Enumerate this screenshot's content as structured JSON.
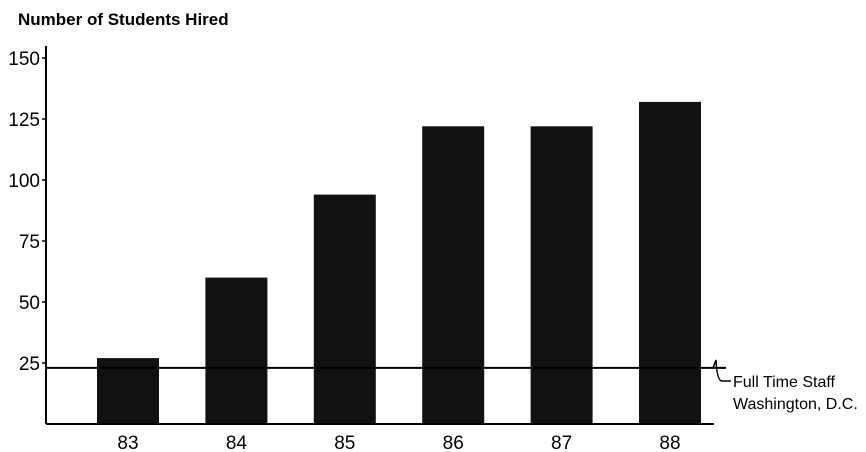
{
  "chart_data": {
    "type": "bar",
    "title": "Number of Students Hired",
    "xlabel": "",
    "ylabel": "",
    "categories": [
      "83",
      "84",
      "85",
      "86",
      "87",
      "88"
    ],
    "values": [
      27,
      60,
      94,
      122,
      122,
      132
    ],
    "ylim": [
      0,
      150
    ],
    "yticks": [
      "25",
      "50",
      "75",
      "100",
      "125",
      "150"
    ],
    "ytick_values": [
      25,
      50,
      75,
      100,
      125,
      150
    ],
    "grid": false,
    "bar_color": "#111111",
    "reference_line": {
      "value": 23,
      "label_line1": "Full Time Staff",
      "label_line2": "Washington, D.C."
    }
  }
}
